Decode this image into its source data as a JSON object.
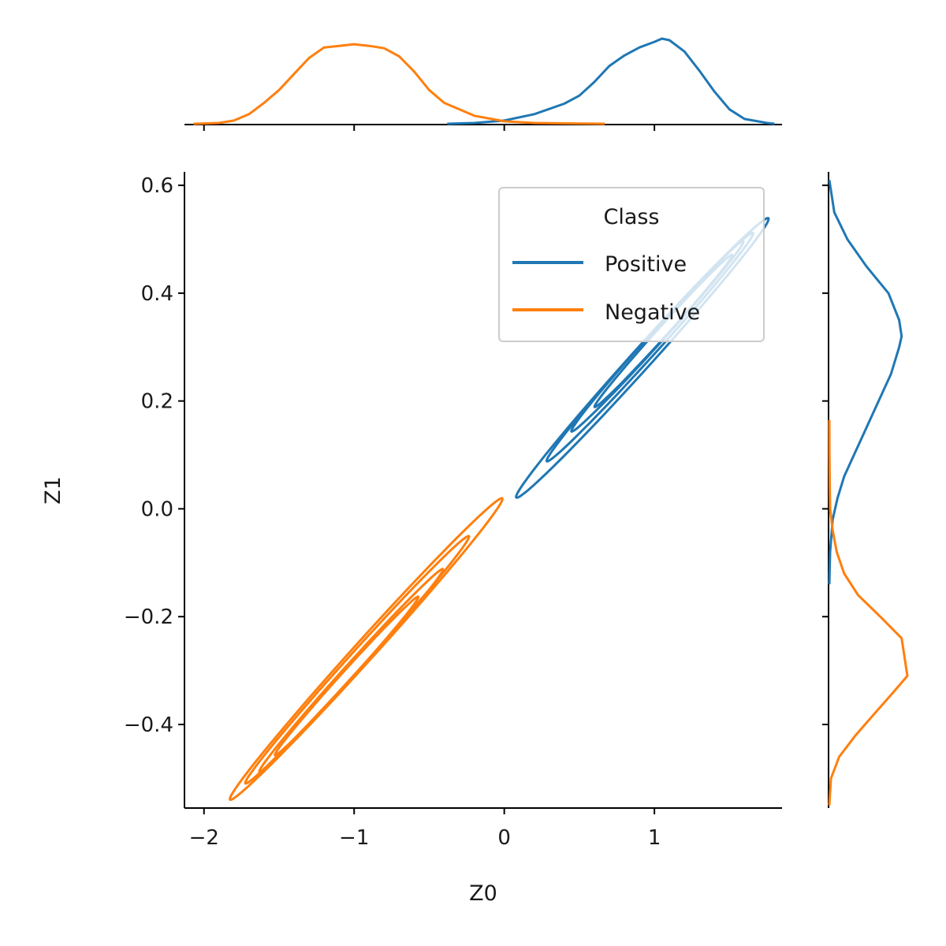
{
  "chart_data": {
    "type": "line",
    "subtype": "joint-kde-contour",
    "xlabel": "Z0",
    "ylabel": "Z1",
    "xlim": [
      -2.13,
      1.85
    ],
    "ylim": [
      -0.555,
      0.625
    ],
    "x_ticks": [
      {
        "value": -2,
        "label": "−2"
      },
      {
        "value": -1,
        "label": "−1"
      },
      {
        "value": 0,
        "label": "0"
      },
      {
        "value": 1,
        "label": "1"
      }
    ],
    "y_ticks": [
      {
        "value": 0.6,
        "label": "0.6"
      },
      {
        "value": 0.4,
        "label": "0.4"
      },
      {
        "value": 0.2,
        "label": "0.2"
      },
      {
        "value": 0.0,
        "label": "0.0"
      },
      {
        "value": -0.2,
        "label": "−0.2"
      },
      {
        "value": -0.4,
        "label": "−0.4"
      }
    ],
    "grid": false,
    "legend": {
      "title": "Class",
      "placement": "top-right"
    },
    "series": [
      {
        "name": "Positive",
        "color": "#1f77b4",
        "contours": [
          {
            "cx": 0.92,
            "cy": 0.28,
            "rx": 0.88,
            "ry": 0.028,
            "angle_deg": 0.3065,
            "rx_scale": 1.0
          },
          {
            "cx": 0.97,
            "cy": 0.3,
            "rx": 0.72,
            "ry": 0.022,
            "angle_deg": 0.3065,
            "rx_scale": 1.0
          },
          {
            "cx": 1.02,
            "cy": 0.32,
            "rx": 0.6,
            "ry": 0.018,
            "angle_deg": 0.3065,
            "rx_scale": 1.0
          },
          {
            "cx": 1.06,
            "cy": 0.33,
            "rx": 0.48,
            "ry": 0.014,
            "angle_deg": 0.3065,
            "rx_scale": 1.0
          }
        ],
        "marginal_x": {
          "x": [
            -0.38,
            -0.2,
            0.0,
            0.2,
            0.4,
            0.5,
            0.6,
            0.7,
            0.8,
            0.9,
            1.0,
            1.05,
            1.1,
            1.2,
            1.3,
            1.4,
            1.5,
            1.6,
            1.75,
            1.8
          ],
          "density": [
            0.0,
            0.01,
            0.04,
            0.12,
            0.25,
            0.35,
            0.52,
            0.72,
            0.85,
            0.95,
            1.02,
            1.06,
            1.04,
            0.9,
            0.66,
            0.4,
            0.18,
            0.06,
            0.01,
            0.0
          ]
        },
        "marginal_y": {
          "y": [
            -0.14,
            -0.08,
            -0.02,
            0.02,
            0.06,
            0.1,
            0.15,
            0.2,
            0.25,
            0.3,
            0.32,
            0.35,
            0.4,
            0.45,
            0.5,
            0.55,
            0.61
          ],
          "density": [
            0.0,
            0.01,
            0.04,
            0.1,
            0.18,
            0.3,
            0.45,
            0.6,
            0.75,
            0.85,
            0.88,
            0.85,
            0.72,
            0.45,
            0.22,
            0.06,
            0.0
          ]
        }
      },
      {
        "name": "Negative",
        "color": "#ff7f0e",
        "contours": [
          {
            "cx": -0.92,
            "cy": -0.26,
            "rx": 0.95,
            "ry": 0.028,
            "angle_deg": 0.3065,
            "rx_scale": 1.0
          },
          {
            "cx": -0.98,
            "cy": -0.28,
            "rx": 0.78,
            "ry": 0.022,
            "angle_deg": 0.3065,
            "rx_scale": 1.0
          },
          {
            "cx": -1.02,
            "cy": -0.3,
            "rx": 0.64,
            "ry": 0.018,
            "angle_deg": 0.3065,
            "rx_scale": 1.0
          },
          {
            "cx": -1.05,
            "cy": -0.31,
            "rx": 0.5,
            "ry": 0.014,
            "angle_deg": 0.3065,
            "rx_scale": 1.0
          }
        ],
        "marginal_x": {
          "x": [
            -2.07,
            -1.9,
            -1.8,
            -1.7,
            -1.6,
            -1.5,
            -1.4,
            -1.3,
            -1.2,
            -1.1,
            -1.0,
            -0.9,
            -0.8,
            -0.7,
            -0.6,
            -0.5,
            -0.4,
            -0.2,
            0.0,
            0.2,
            0.4,
            0.67
          ],
          "density": [
            0.0,
            0.01,
            0.04,
            0.12,
            0.26,
            0.42,
            0.62,
            0.82,
            0.95,
            0.97,
            0.99,
            0.97,
            0.94,
            0.84,
            0.65,
            0.42,
            0.26,
            0.1,
            0.03,
            0.01,
            0.005,
            0.0
          ]
        },
        "marginal_y": {
          "y": [
            -0.55,
            -0.5,
            -0.46,
            -0.42,
            -0.38,
            -0.34,
            -0.31,
            -0.28,
            -0.24,
            -0.2,
            -0.16,
            -0.12,
            -0.08,
            -0.04,
            0.0,
            0.05,
            0.1,
            0.165
          ],
          "density": [
            0.0,
            0.02,
            0.12,
            0.32,
            0.55,
            0.78,
            0.95,
            0.92,
            0.88,
            0.62,
            0.35,
            0.18,
            0.09,
            0.04,
            0.01,
            0.005,
            0.002,
            0.0
          ]
        }
      }
    ]
  }
}
